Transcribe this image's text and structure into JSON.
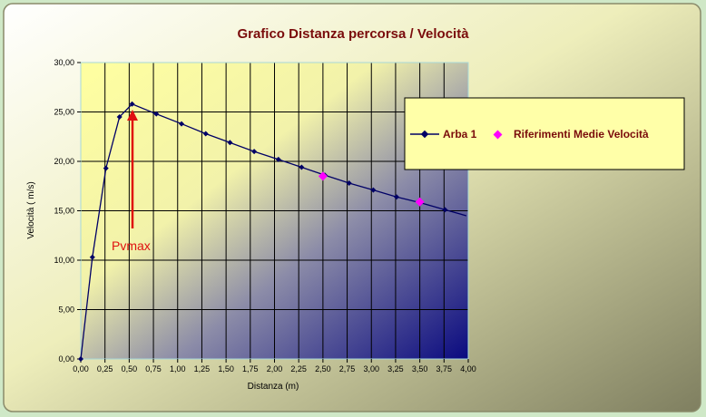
{
  "colors": {
    "frame_border": "#8a8a6a",
    "plot_top_left": "#ffffa0",
    "plot_bottom_right": "#0a0a80",
    "series_line": "#000066",
    "reference_marker": "#ff00ff",
    "title": "#7a0b0b",
    "annotation": "#e01010",
    "legend_bg": "#ffffa8"
  },
  "chart_data": {
    "type": "scatter",
    "title": "Grafico Distanza percorsa / Velocità",
    "xlabel": "Distanza (m)",
    "ylabel": "Velocità ( m/s)",
    "xlim": [
      0,
      4
    ],
    "ylim": [
      0,
      30
    ],
    "x_ticks": [
      "0,00",
      "0,25",
      "0,50",
      "0,75",
      "1,00",
      "1,25",
      "1,50",
      "1,75",
      "2,00",
      "2,25",
      "2,50",
      "2,75",
      "3,00",
      "3,25",
      "3,50",
      "3,75",
      "4,00"
    ],
    "y_ticks": [
      "0,00",
      "5,00",
      "10,00",
      "15,00",
      "20,00",
      "25,00",
      "30,00"
    ],
    "grid": true,
    "legend_position": "right",
    "series": [
      {
        "name": "Arba 1",
        "style": "line-markers",
        "color": "#000066",
        "marker": "diamond",
        "x": [
          0.0,
          0.12,
          0.26,
          0.4,
          0.53,
          0.78,
          1.04,
          1.29,
          1.54,
          1.79,
          2.04,
          2.28,
          2.52,
          2.77,
          3.02,
          3.26,
          3.51,
          3.76,
          3.98
        ],
        "y": [
          0.0,
          10.3,
          19.3,
          24.5,
          25.8,
          24.8,
          23.8,
          22.8,
          21.9,
          21.0,
          20.2,
          19.4,
          18.6,
          17.8,
          17.1,
          16.4,
          15.8,
          15.1,
          14.5
        ]
      },
      {
        "name": "Riferimenti Medie Velocità",
        "style": "markers",
        "color": "#ff00ff",
        "marker": "diamond",
        "x": [
          2.5,
          3.5
        ],
        "y": [
          18.5,
          15.9
        ]
      }
    ],
    "annotations": [
      {
        "text": "Pvmax",
        "x": 0.53,
        "y": 25.8
      }
    ]
  }
}
